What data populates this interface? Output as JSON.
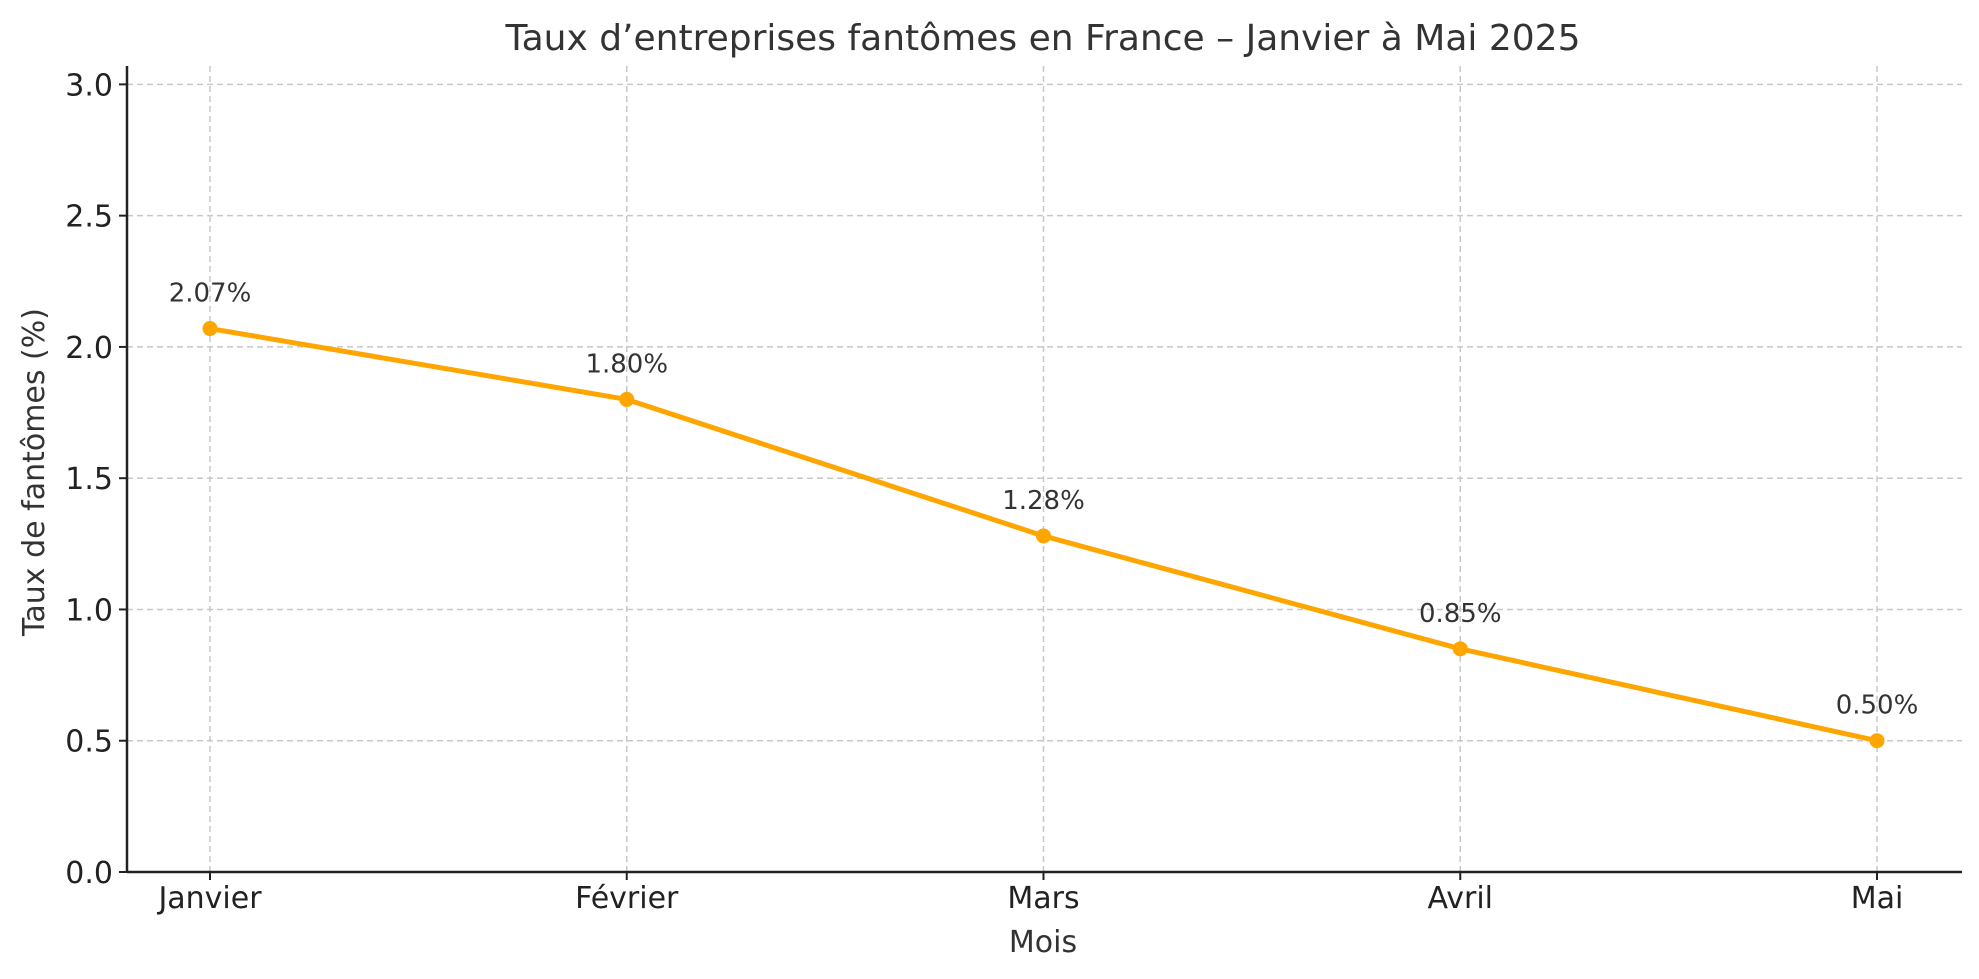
{
  "chart_data": {
    "type": "line",
    "title": "Taux d’entreprises fantômes en France – Janvier à Mai 2025",
    "xlabel": "Mois",
    "ylabel": "Taux de fantômes (%)",
    "categories": [
      "Janvier",
      "Février",
      "Mars",
      "Avril",
      "Mai"
    ],
    "series": [
      {
        "values": [
          2.07,
          1.8,
          1.28,
          0.85,
          0.5
        ],
        "data_labels": [
          "2.07%",
          "1.80%",
          "1.28%",
          "0.85%",
          "0.50%"
        ],
        "color": "#FFA500",
        "marker": "circle"
      }
    ],
    "ylim": [
      0,
      3.07
    ],
    "yticks": [
      0.0,
      0.5,
      1.0,
      1.5,
      2.0,
      2.5,
      3.0
    ],
    "ytick_labels": [
      "0.0",
      "0.5",
      "1.0",
      "1.5",
      "2.0",
      "2.5",
      "3.0"
    ],
    "grid": true,
    "axis_color": "#222222",
    "grid_color": "#c8c8c8"
  }
}
